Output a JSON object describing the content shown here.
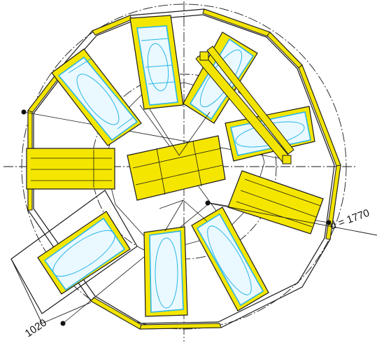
{
  "dimensions": {
    "diameter": "d = 1770",
    "bay_width": "1020"
  },
  "colors": {
    "structure": "#f5e600",
    "car_outline": "#29b6e8",
    "line": "#1a1a1a"
  }
}
